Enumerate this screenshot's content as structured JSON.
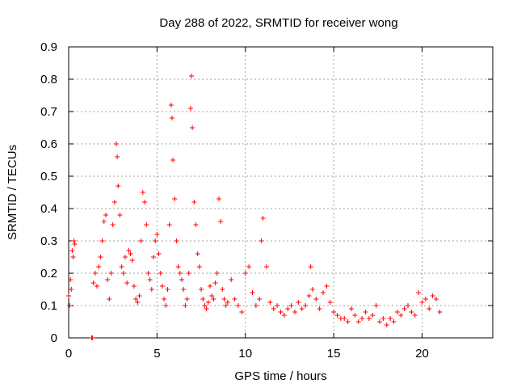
{
  "chart_data": {
    "type": "scatter",
    "title": "Day 288 of 2022, SRMTID for receiver wong",
    "xlabel": "GPS time / hours",
    "ylabel": "SRMTID / TECUs",
    "xlim": [
      0,
      24
    ],
    "ylim": [
      0,
      0.9
    ],
    "x_ticks": [
      0,
      5,
      10,
      15,
      20
    ],
    "x_tick_labels": [
      "0",
      "5",
      "10",
      "15",
      "20"
    ],
    "y_ticks": [
      0,
      0.1,
      0.2,
      0.3,
      0.4,
      0.5,
      0.6,
      0.7,
      0.8,
      0.9
    ],
    "y_tick_labels": [
      "0",
      "0.1",
      "0.2",
      "0.3",
      "0.4",
      "0.5",
      "0.6",
      "0.7",
      "0.8",
      "0.9"
    ],
    "grid": true,
    "marker": "+",
    "color": "#ff0000",
    "series": [
      {
        "name": "SRMTID",
        "x": [
          0.0,
          0.05,
          0.1,
          0.15,
          0.2,
          0.25,
          0.3,
          0.35,
          1.3,
          1.35,
          1.4,
          1.5,
          1.6,
          1.7,
          1.8,
          1.9,
          2.0,
          2.1,
          2.2,
          2.3,
          2.4,
          2.5,
          2.6,
          2.7,
          2.75,
          2.8,
          2.9,
          3.0,
          3.1,
          3.2,
          3.3,
          3.4,
          3.5,
          3.6,
          3.7,
          3.8,
          3.9,
          4.0,
          4.1,
          4.2,
          4.3,
          4.4,
          4.5,
          4.6,
          4.7,
          4.8,
          4.9,
          5.0,
          5.1,
          5.2,
          5.3,
          5.4,
          5.5,
          5.6,
          5.7,
          5.8,
          5.85,
          5.9,
          6.0,
          6.1,
          6.2,
          6.3,
          6.4,
          6.5,
          6.6,
          6.7,
          6.8,
          6.9,
          6.95,
          7.0,
          7.1,
          7.2,
          7.3,
          7.4,
          7.5,
          7.6,
          7.7,
          7.8,
          7.9,
          8.0,
          8.1,
          8.2,
          8.3,
          8.4,
          8.5,
          8.6,
          8.7,
          8.8,
          8.9,
          9.0,
          9.2,
          9.4,
          9.6,
          9.8,
          10.0,
          10.2,
          10.4,
          10.6,
          10.8,
          10.9,
          11.0,
          11.2,
          11.4,
          11.6,
          11.8,
          12.0,
          12.2,
          12.4,
          12.6,
          12.8,
          13.0,
          13.2,
          13.4,
          13.6,
          13.7,
          13.8,
          14.0,
          14.2,
          14.4,
          14.6,
          14.8,
          15.0,
          15.2,
          15.4,
          15.6,
          15.8,
          16.0,
          16.2,
          16.4,
          16.6,
          16.8,
          17.0,
          17.2,
          17.4,
          17.6,
          17.8,
          18.0,
          18.2,
          18.4,
          18.6,
          18.8,
          19.0,
          19.2,
          19.4,
          19.6,
          19.8,
          20.0,
          20.2,
          20.4,
          20.6,
          20.8,
          21.0
        ],
        "y": [
          0.13,
          0.1,
          0.18,
          0.15,
          0.27,
          0.25,
          0.3,
          0.29,
          0.0,
          0.0,
          0.17,
          0.2,
          0.16,
          0.22,
          0.25,
          0.3,
          0.36,
          0.38,
          0.18,
          0.12,
          0.2,
          0.35,
          0.42,
          0.6,
          0.56,
          0.47,
          0.38,
          0.22,
          0.2,
          0.25,
          0.17,
          0.27,
          0.26,
          0.24,
          0.16,
          0.12,
          0.11,
          0.13,
          0.3,
          0.45,
          0.42,
          0.35,
          0.2,
          0.18,
          0.15,
          0.25,
          0.3,
          0.32,
          0.26,
          0.2,
          0.16,
          0.12,
          0.1,
          0.15,
          0.35,
          0.72,
          0.68,
          0.55,
          0.43,
          0.3,
          0.22,
          0.2,
          0.18,
          0.15,
          0.1,
          0.12,
          0.2,
          0.71,
          0.81,
          0.65,
          0.42,
          0.35,
          0.26,
          0.22,
          0.15,
          0.12,
          0.1,
          0.09,
          0.11,
          0.16,
          0.13,
          0.12,
          0.17,
          0.2,
          0.43,
          0.36,
          0.15,
          0.12,
          0.1,
          0.11,
          0.18,
          0.12,
          0.1,
          0.08,
          0.2,
          0.22,
          0.14,
          0.1,
          0.12,
          0.3,
          0.37,
          0.22,
          0.11,
          0.09,
          0.1,
          0.08,
          0.07,
          0.09,
          0.1,
          0.08,
          0.11,
          0.09,
          0.1,
          0.13,
          0.22,
          0.15,
          0.12,
          0.09,
          0.14,
          0.16,
          0.11,
          0.08,
          0.07,
          0.06,
          0.06,
          0.05,
          0.09,
          0.07,
          0.05,
          0.06,
          0.08,
          0.06,
          0.07,
          0.1,
          0.05,
          0.06,
          0.04,
          0.06,
          0.05,
          0.08,
          0.07,
          0.09,
          0.1,
          0.08,
          0.07,
          0.14,
          0.11,
          0.12,
          0.09,
          0.13,
          0.12,
          0.08
        ]
      }
    ]
  }
}
